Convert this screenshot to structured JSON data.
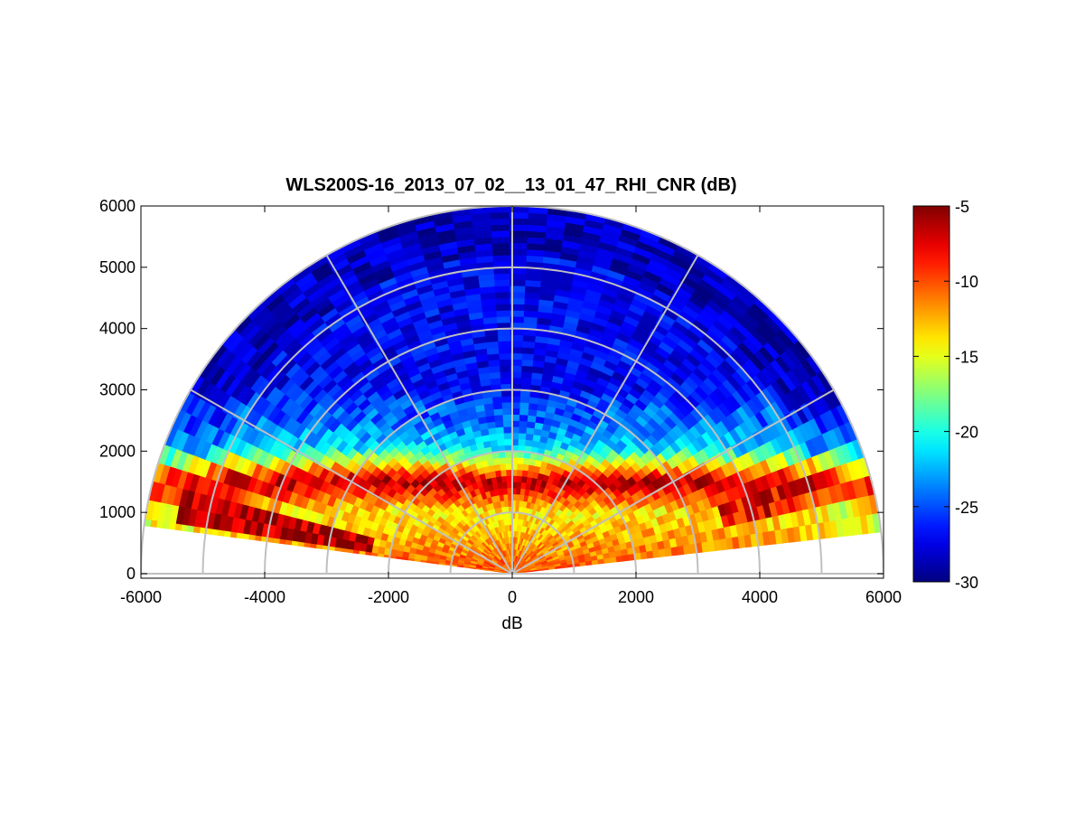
{
  "chart_data": {
    "type": "heatmap",
    "subtype": "polar-rhi-sector",
    "title": "WLS200S-16_2013_07_02__13_01_47_RHI_CNR (dB)",
    "xlabel": "dB",
    "ylabel": "",
    "xlim": [
      -6000,
      6000
    ],
    "ylim": [
      0,
      6000
    ],
    "x_ticks": [
      "-6000",
      "-4000",
      "-2000",
      "0",
      "2000",
      "4000",
      "6000"
    ],
    "y_ticks": [
      "0",
      "1000",
      "2000",
      "3000",
      "4000",
      "5000",
      "6000"
    ],
    "colormap": "jet",
    "colorbar": {
      "range": [
        -30,
        -5
      ],
      "ticks": [
        "-5",
        "-10",
        "-15",
        "-20",
        "-25",
        "-30"
      ]
    },
    "elevation_range_deg": [
      6.5,
      172.5
    ],
    "max_range": 6000,
    "grid": true,
    "polar_grid": {
      "range_rings": [
        1000,
        2000,
        3000,
        4000,
        5000,
        6000
      ],
      "spokes_deg": [
        0,
        30,
        60,
        90,
        120,
        150,
        180
      ]
    },
    "cnr_profile": {
      "description_free": true,
      "surface_cnr_db": -10,
      "cnr_at_1000m_db": -14,
      "boundary_layer_top_m": 1500,
      "boundary_layer_top_cnr_db": -6,
      "free_troposphere_cnr_db": -27,
      "cloud_returns": [
        {
          "elevation_deg": 15,
          "range_start_m": 3500,
          "range_end_m": 4800,
          "cnr_db": -8
        },
        {
          "elevation_deg": 168,
          "range_start_m": 2300,
          "range_end_m": 5500,
          "cnr_db": -6
        }
      ]
    }
  }
}
